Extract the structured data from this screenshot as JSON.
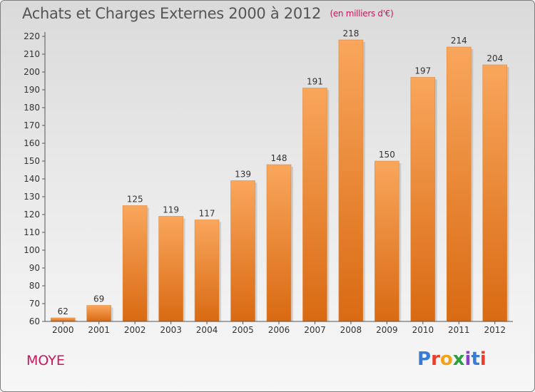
{
  "header": {
    "title": "Achats et Charges Externes 2000 à 2012",
    "unit": "(en milliers d'€)"
  },
  "footer": {
    "town": "MOYE",
    "brand": "Proxiti"
  },
  "colors": {
    "bar_light": "#f9a65c",
    "bar_dark": "#d96a12",
    "accent": "#c8175d",
    "axis": "#555555"
  },
  "chart_data": {
    "type": "bar",
    "title": "Achats et Charges Externes 2000 à 2012",
    "subtitle": "(en milliers d'€)",
    "xlabel": "",
    "ylabel": "",
    "categories": [
      "2000",
      "2001",
      "2002",
      "2003",
      "2004",
      "2005",
      "2006",
      "2007",
      "2008",
      "2009",
      "2010",
      "2011",
      "2012"
    ],
    "values": [
      62,
      69,
      125,
      119,
      117,
      139,
      148,
      191,
      218,
      150,
      197,
      214,
      204
    ],
    "ylim": [
      60,
      220
    ],
    "yticks": [
      60,
      70,
      80,
      90,
      100,
      110,
      120,
      130,
      140,
      150,
      160,
      170,
      180,
      190,
      200,
      210,
      220
    ],
    "grid": false,
    "legend": "none"
  }
}
